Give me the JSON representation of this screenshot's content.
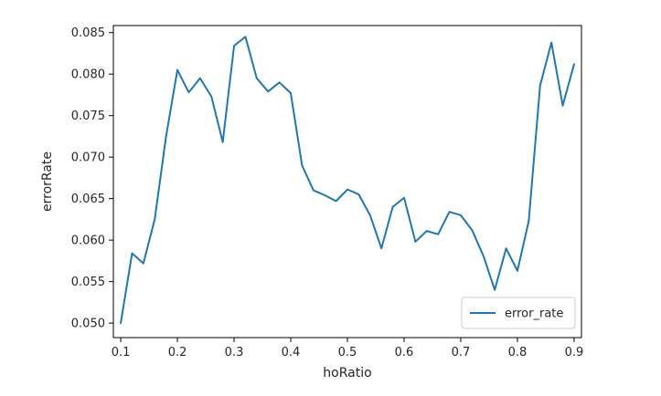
{
  "chart_data": {
    "type": "line",
    "xlabel": "hoRatio",
    "ylabel": "errorRate",
    "xlim": [
      0.087,
      0.913
    ],
    "ylim": [
      0.04825,
      0.08585
    ],
    "xticks": [
      0.1,
      0.2,
      0.3,
      0.4,
      0.5,
      0.6,
      0.7,
      0.8,
      0.9
    ],
    "xtick_labels": [
      "0.1",
      "0.2",
      "0.3",
      "0.4",
      "0.5",
      "0.6",
      "0.7",
      "0.8",
      "0.9"
    ],
    "yticks": [
      0.05,
      0.055,
      0.06,
      0.065,
      0.07,
      0.075,
      0.08,
      0.085
    ],
    "ytick_labels": [
      "0.050",
      "0.055",
      "0.060",
      "0.065",
      "0.070",
      "0.075",
      "0.080",
      "0.085"
    ],
    "grid": false,
    "legend_position": "lower-right",
    "color": "#1f77b4",
    "series": [
      {
        "name": "error_rate",
        "x": [
          0.1,
          0.12,
          0.14,
          0.16,
          0.18,
          0.2,
          0.22,
          0.24,
          0.26,
          0.28,
          0.3,
          0.32,
          0.34,
          0.36,
          0.38,
          0.4,
          0.42,
          0.44,
          0.46,
          0.48,
          0.5,
          0.52,
          0.54,
          0.56,
          0.58,
          0.6,
          0.62,
          0.64,
          0.66,
          0.68,
          0.7,
          0.72,
          0.74,
          0.76,
          0.78,
          0.8,
          0.82,
          0.84,
          0.86,
          0.88,
          0.9
        ],
        "y": [
          0.05,
          0.0584,
          0.0572,
          0.0625,
          0.0725,
          0.0805,
          0.0778,
          0.0795,
          0.0773,
          0.0718,
          0.0834,
          0.0845,
          0.0795,
          0.0779,
          0.079,
          0.0777,
          0.069,
          0.066,
          0.0654,
          0.0647,
          0.0661,
          0.0655,
          0.063,
          0.059,
          0.064,
          0.0651,
          0.0598,
          0.0611,
          0.0607,
          0.0634,
          0.063,
          0.0612,
          0.0581,
          0.054,
          0.059,
          0.0563,
          0.0623,
          0.0786,
          0.0838,
          0.0762,
          0.0812
        ]
      }
    ]
  }
}
